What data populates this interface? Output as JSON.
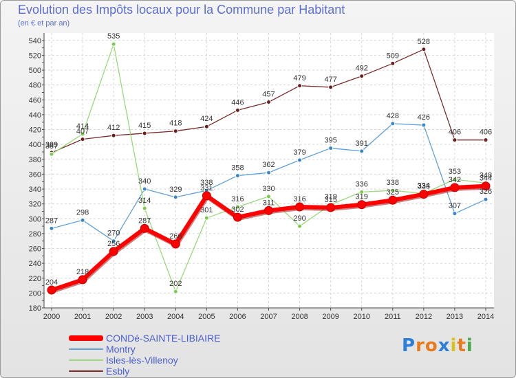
{
  "title": "Evolution des Impôts locaux pour la Commune par Habitant",
  "subtitle": "(en € et par an)",
  "brand": {
    "letters": [
      "P",
      "r",
      "o",
      "x",
      "i",
      "t",
      "i"
    ],
    "colors": [
      "#2b7fd6",
      "#e87a1e",
      "#e87a1e",
      "#2b7fd6",
      "#d8c21b",
      "#e87a1e",
      "#4aa84a"
    ]
  },
  "chart_data": {
    "type": "line",
    "x": [
      "2000",
      "2001",
      "2002",
      "2003",
      "2004",
      "2005",
      "2006",
      "2007",
      "2008",
      "2009",
      "2010",
      "2011",
      "2012",
      "2013",
      "2014"
    ],
    "ylim": [
      180,
      550
    ],
    "yticks": [
      180,
      200,
      220,
      240,
      260,
      280,
      300,
      320,
      340,
      360,
      380,
      400,
      420,
      440,
      460,
      480,
      500,
      520,
      540
    ],
    "grid": true,
    "legend_position": "bottom-left",
    "series": [
      {
        "name": "Esbly",
        "color": "#7a2a2a",
        "width": 1.3,
        "point_color": "#6a1f1f",
        "values": [
          389,
          407,
          412,
          415,
          418,
          424,
          446,
          457,
          479,
          477,
          492,
          509,
          528,
          406,
          406
        ]
      },
      {
        "name": "Montry",
        "color": "#5fa0d6",
        "width": 1.3,
        "point_color": "#3d86c6",
        "values": [
          287,
          298,
          270,
          340,
          329,
          338,
          358,
          362,
          379,
          395,
          391,
          428,
          426,
          307,
          326
        ]
      },
      {
        "name": "Isles-lès-Villenoy",
        "color": "#9ad87a",
        "width": 1.3,
        "point_color": "#7cc94e",
        "values": [
          387,
          414,
          535,
          314,
          202,
          301,
          316,
          330,
          290,
          319,
          336,
          338,
          334,
          353,
          348
        ]
      },
      {
        "name": "CONDé-SAINTE-LIBIAIRE",
        "color": "#ff0000",
        "width": 6,
        "point_color": "#ff0000",
        "values": [
          204,
          218,
          256,
          287,
          266,
          331,
          302,
          311,
          316,
          315,
          319,
          325,
          333,
          342,
          344
        ]
      }
    ]
  }
}
